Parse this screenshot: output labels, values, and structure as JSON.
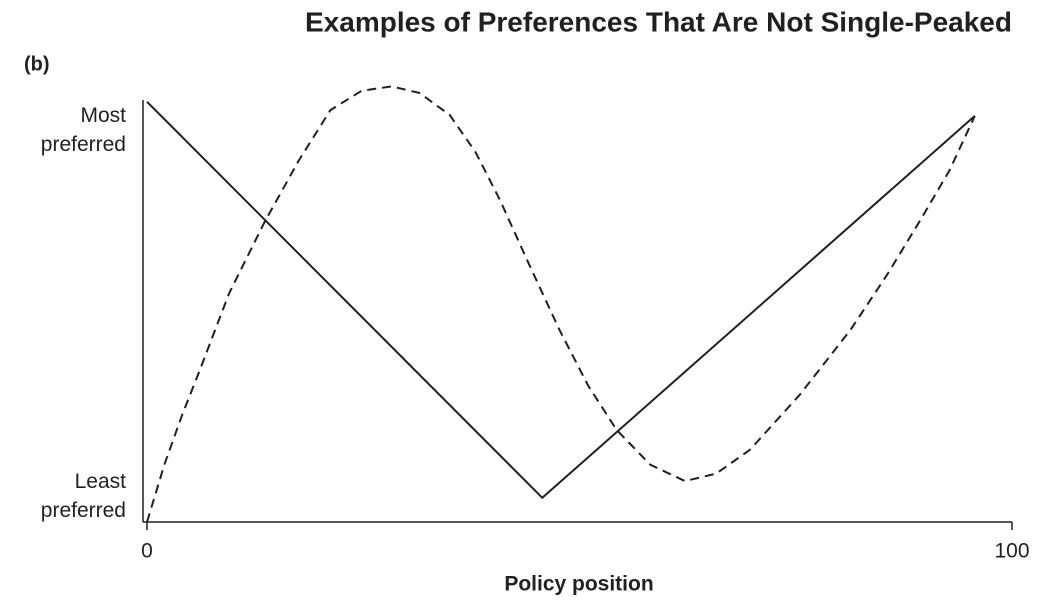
{
  "chart_data": {
    "type": "line",
    "title": "Examples of Preferences That Are Not Single-Peaked",
    "panel_label": "(b)",
    "x_label": "Policy position",
    "xlim": [
      0,
      100
    ],
    "xticks": [
      0,
      100
    ],
    "ylim": [
      0,
      100
    ],
    "yticks": [
      {
        "value": 89,
        "label": "Most preferred"
      },
      {
        "value": 6,
        "label": "Least preferred"
      }
    ],
    "series": [
      {
        "color": "#231f20",
        "style": "solid",
        "x": [
          0,
          45.7,
          95.7
        ],
        "values": [
          95.5,
          5.5,
          92.3
        ]
      },
      {
        "color": "#231f20",
        "style": "dashed",
        "x": [
          0,
          2,
          4,
          6.1,
          9.5,
          13.6,
          17.5,
          21.2,
          24.8,
          28.3,
          31.5,
          35,
          38,
          40.8,
          44.3,
          47.7,
          51,
          54.3,
          58.2,
          62.2,
          65.8,
          69.7,
          75.5,
          81.3,
          85.5,
          89.4,
          92.8,
          95.7
        ],
        "values": [
          0,
          13,
          24,
          34.5,
          52,
          68.2,
          82,
          93.6,
          98,
          99,
          97.5,
          92.5,
          84,
          73.2,
          58,
          43.6,
          31,
          20.9,
          13,
          9.3,
          11,
          16.4,
          29,
          43.6,
          56,
          68.6,
          80,
          92.3
        ]
      }
    ]
  }
}
